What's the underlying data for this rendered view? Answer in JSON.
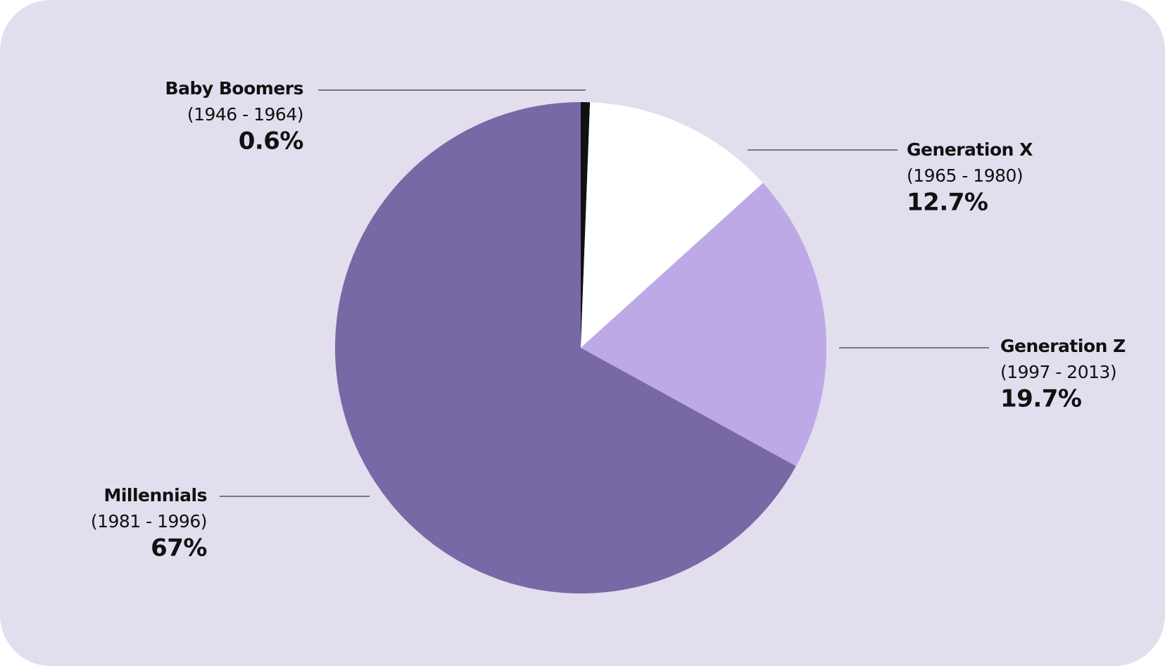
{
  "chart_data": {
    "type": "pie",
    "categories": [
      "Baby Boomers",
      "Generation X",
      "Generation Z",
      "Millennials"
    ],
    "years": [
      "(1946 - 1964)",
      "(1965 - 1980)",
      "(1997 - 2013)",
      "(1981 - 1996)"
    ],
    "values": [
      0.6,
      12.7,
      19.7,
      67
    ],
    "value_labels": [
      "0.6%",
      "12.7%",
      "19.7%",
      "67%"
    ],
    "colors": [
      "#111111",
      "#ffffff",
      "#bca9e6",
      "#7968a6"
    ]
  }
}
